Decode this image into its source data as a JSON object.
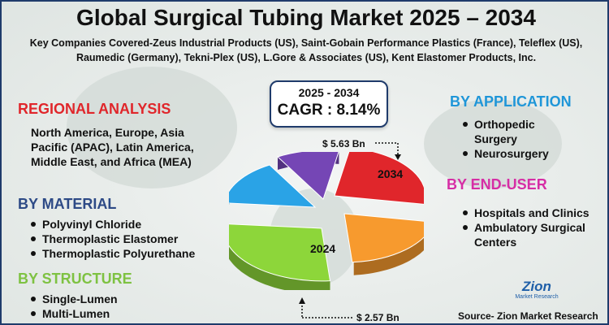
{
  "title": "Global Surgical Tubing Market 2025 – 2034",
  "companies": "Key Companies Covered-Zeus Industrial Products (US), Saint-Gobain Performance Plastics (France), Teleflex (US), Raumedic (Germany), Tekni-Plex (US), L.Gore & Associates (US), Kent Elastomer Products, Inc.",
  "cagr": {
    "period": "2025 - 2034",
    "value": "CAGR : 8.14%"
  },
  "regional": {
    "heading": "REGIONAL ANALYSIS",
    "heading_color": "#e0262b",
    "text": "North America, Europe, Asia Pacific (APAC), Latin America, Middle East, and Africa (MEA)"
  },
  "material": {
    "heading": "BY MATERIAL",
    "heading_color": "#2d4a86",
    "items": [
      "Polyvinyl Chloride",
      "Thermoplastic Elastomer",
      "Thermoplastic Polyurethane"
    ]
  },
  "structure": {
    "heading": "BY STRUCTURE",
    "heading_color": "#7ec242",
    "items": [
      "Single-Lumen",
      "Multi-Lumen"
    ]
  },
  "application": {
    "heading": "BY APPLICATION",
    "heading_color": "#1f96d8",
    "items": [
      "Orthopedic Surgery",
      "Neurosurgery"
    ]
  },
  "end_user": {
    "heading": "BY END-USER",
    "heading_color": "#d62ea5",
    "items": [
      "Hospitals and Clinics",
      "Ambulatory Surgical Centers"
    ]
  },
  "chart_data": {
    "type": "pie",
    "title": "",
    "slices": [
      {
        "label": "2034",
        "value": 5.63,
        "color": "#e0262b"
      },
      {
        "label": "",
        "color": "#f79a2e"
      },
      {
        "label": "2024",
        "value": 2.57,
        "color": "#8dd63a"
      },
      {
        "label": "",
        "color": "#2aa3e6"
      },
      {
        "label": "",
        "color": "#7546b5"
      }
    ],
    "annotations": [
      "$ 5.63 Bn",
      "$ 2.57 Bn"
    ]
  },
  "logo": {
    "name": "Zion",
    "sub": "Market Research"
  },
  "source": "Source- Zion Market Research"
}
